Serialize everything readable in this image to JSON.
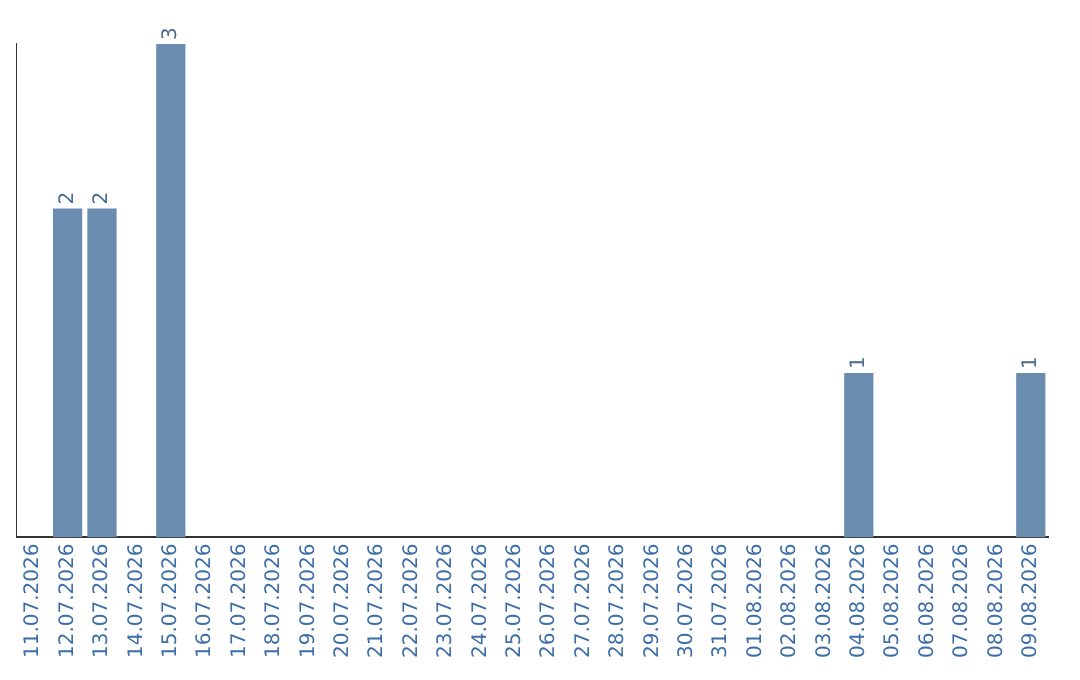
{
  "chart_data": {
    "type": "bar",
    "categories": [
      "11.07.2026",
      "12.07.2026",
      "13.07.2026",
      "14.07.2026",
      "15.07.2026",
      "16.07.2026",
      "17.07.2026",
      "18.07.2026",
      "19.07.2026",
      "20.07.2026",
      "21.07.2026",
      "22.07.2026",
      "23.07.2026",
      "24.07.2026",
      "25.07.2026",
      "26.07.2026",
      "27.07.2026",
      "28.07.2026",
      "29.07.2026",
      "30.07.2026",
      "31.07.2026",
      "01.08.2026",
      "02.08.2026",
      "03.08.2026",
      "04.08.2026",
      "05.08.2026",
      "06.08.2026",
      "07.08.2026",
      "08.08.2026",
      "09.08.2026"
    ],
    "values": [
      0,
      2,
      2,
      0,
      3,
      0,
      0,
      0,
      0,
      0,
      0,
      0,
      0,
      0,
      0,
      0,
      0,
      0,
      0,
      0,
      0,
      0,
      0,
      0,
      1,
      0,
      0,
      0,
      0,
      1
    ],
    "value_labels": [
      null,
      "2",
      "2",
      null,
      "3",
      null,
      null,
      null,
      null,
      null,
      null,
      null,
      null,
      null,
      null,
      null,
      null,
      null,
      null,
      null,
      null,
      null,
      null,
      null,
      "1",
      null,
      null,
      null,
      null,
      "1"
    ],
    "color": "#6a8caf",
    "tick_labels": "x",
    "grid": false,
    "legend": false
  }
}
